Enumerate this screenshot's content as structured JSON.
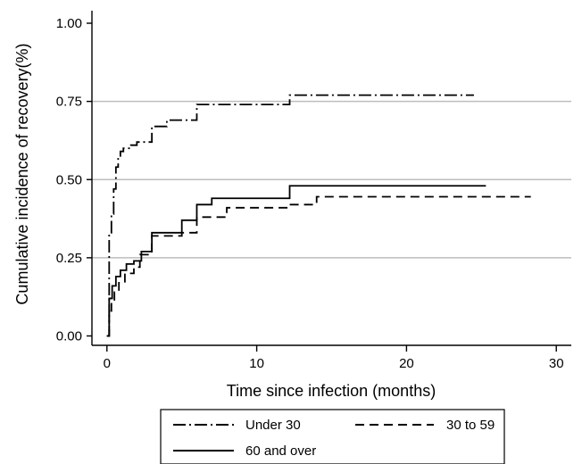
{
  "chart_data": {
    "type": "line",
    "title": "",
    "xlabel": "Time since infection (months)",
    "ylabel": "Cumulative incidence of recovery(%)",
    "xlim": [
      -1,
      31
    ],
    "ylim": [
      -0.03,
      1.04
    ],
    "xticks": [
      0,
      10,
      20,
      30
    ],
    "xtick_labels": [
      "0",
      "10",
      "20",
      "30"
    ],
    "yticks": [
      0,
      0.25,
      0.5,
      0.75,
      1
    ],
    "ytick_labels": [
      "0.00",
      "0.25",
      "0.50",
      "0.75",
      "1.00"
    ],
    "grid": "horizontal",
    "legend_position": "bottom",
    "series": [
      {
        "name": "Under 30",
        "style": "dash-dot",
        "x": [
          0,
          0.15,
          0.3,
          0.45,
          0.6,
          0.75,
          0.9,
          1.1,
          1.6,
          2.0,
          3.0,
          4.0,
          6.0,
          12.2,
          24.5
        ],
        "y": [
          0,
          0.33,
          0.39,
          0.47,
          0.54,
          0.57,
          0.59,
          0.6,
          0.61,
          0.62,
          0.67,
          0.69,
          0.74,
          0.77,
          0.77
        ]
      },
      {
        "name": "30 to 59",
        "style": "dashed",
        "x": [
          0,
          0.15,
          0.3,
          0.5,
          0.8,
          1.2,
          1.8,
          2.2,
          3.0,
          5.0,
          6.0,
          8.0,
          12.0,
          14.0,
          28.3
        ],
        "y": [
          0,
          0.08,
          0.11,
          0.14,
          0.17,
          0.2,
          0.22,
          0.26,
          0.32,
          0.33,
          0.38,
          0.41,
          0.42,
          0.445,
          0.445
        ]
      },
      {
        "name": "60 and over",
        "style": "solid",
        "x": [
          0,
          0.15,
          0.35,
          0.6,
          0.9,
          1.3,
          1.8,
          2.3,
          3.0,
          5.0,
          6.0,
          7.0,
          12.2,
          25.3
        ],
        "y": [
          0,
          0.12,
          0.16,
          0.19,
          0.21,
          0.23,
          0.24,
          0.27,
          0.33,
          0.37,
          0.42,
          0.44,
          0.48,
          0.48
        ]
      }
    ]
  }
}
